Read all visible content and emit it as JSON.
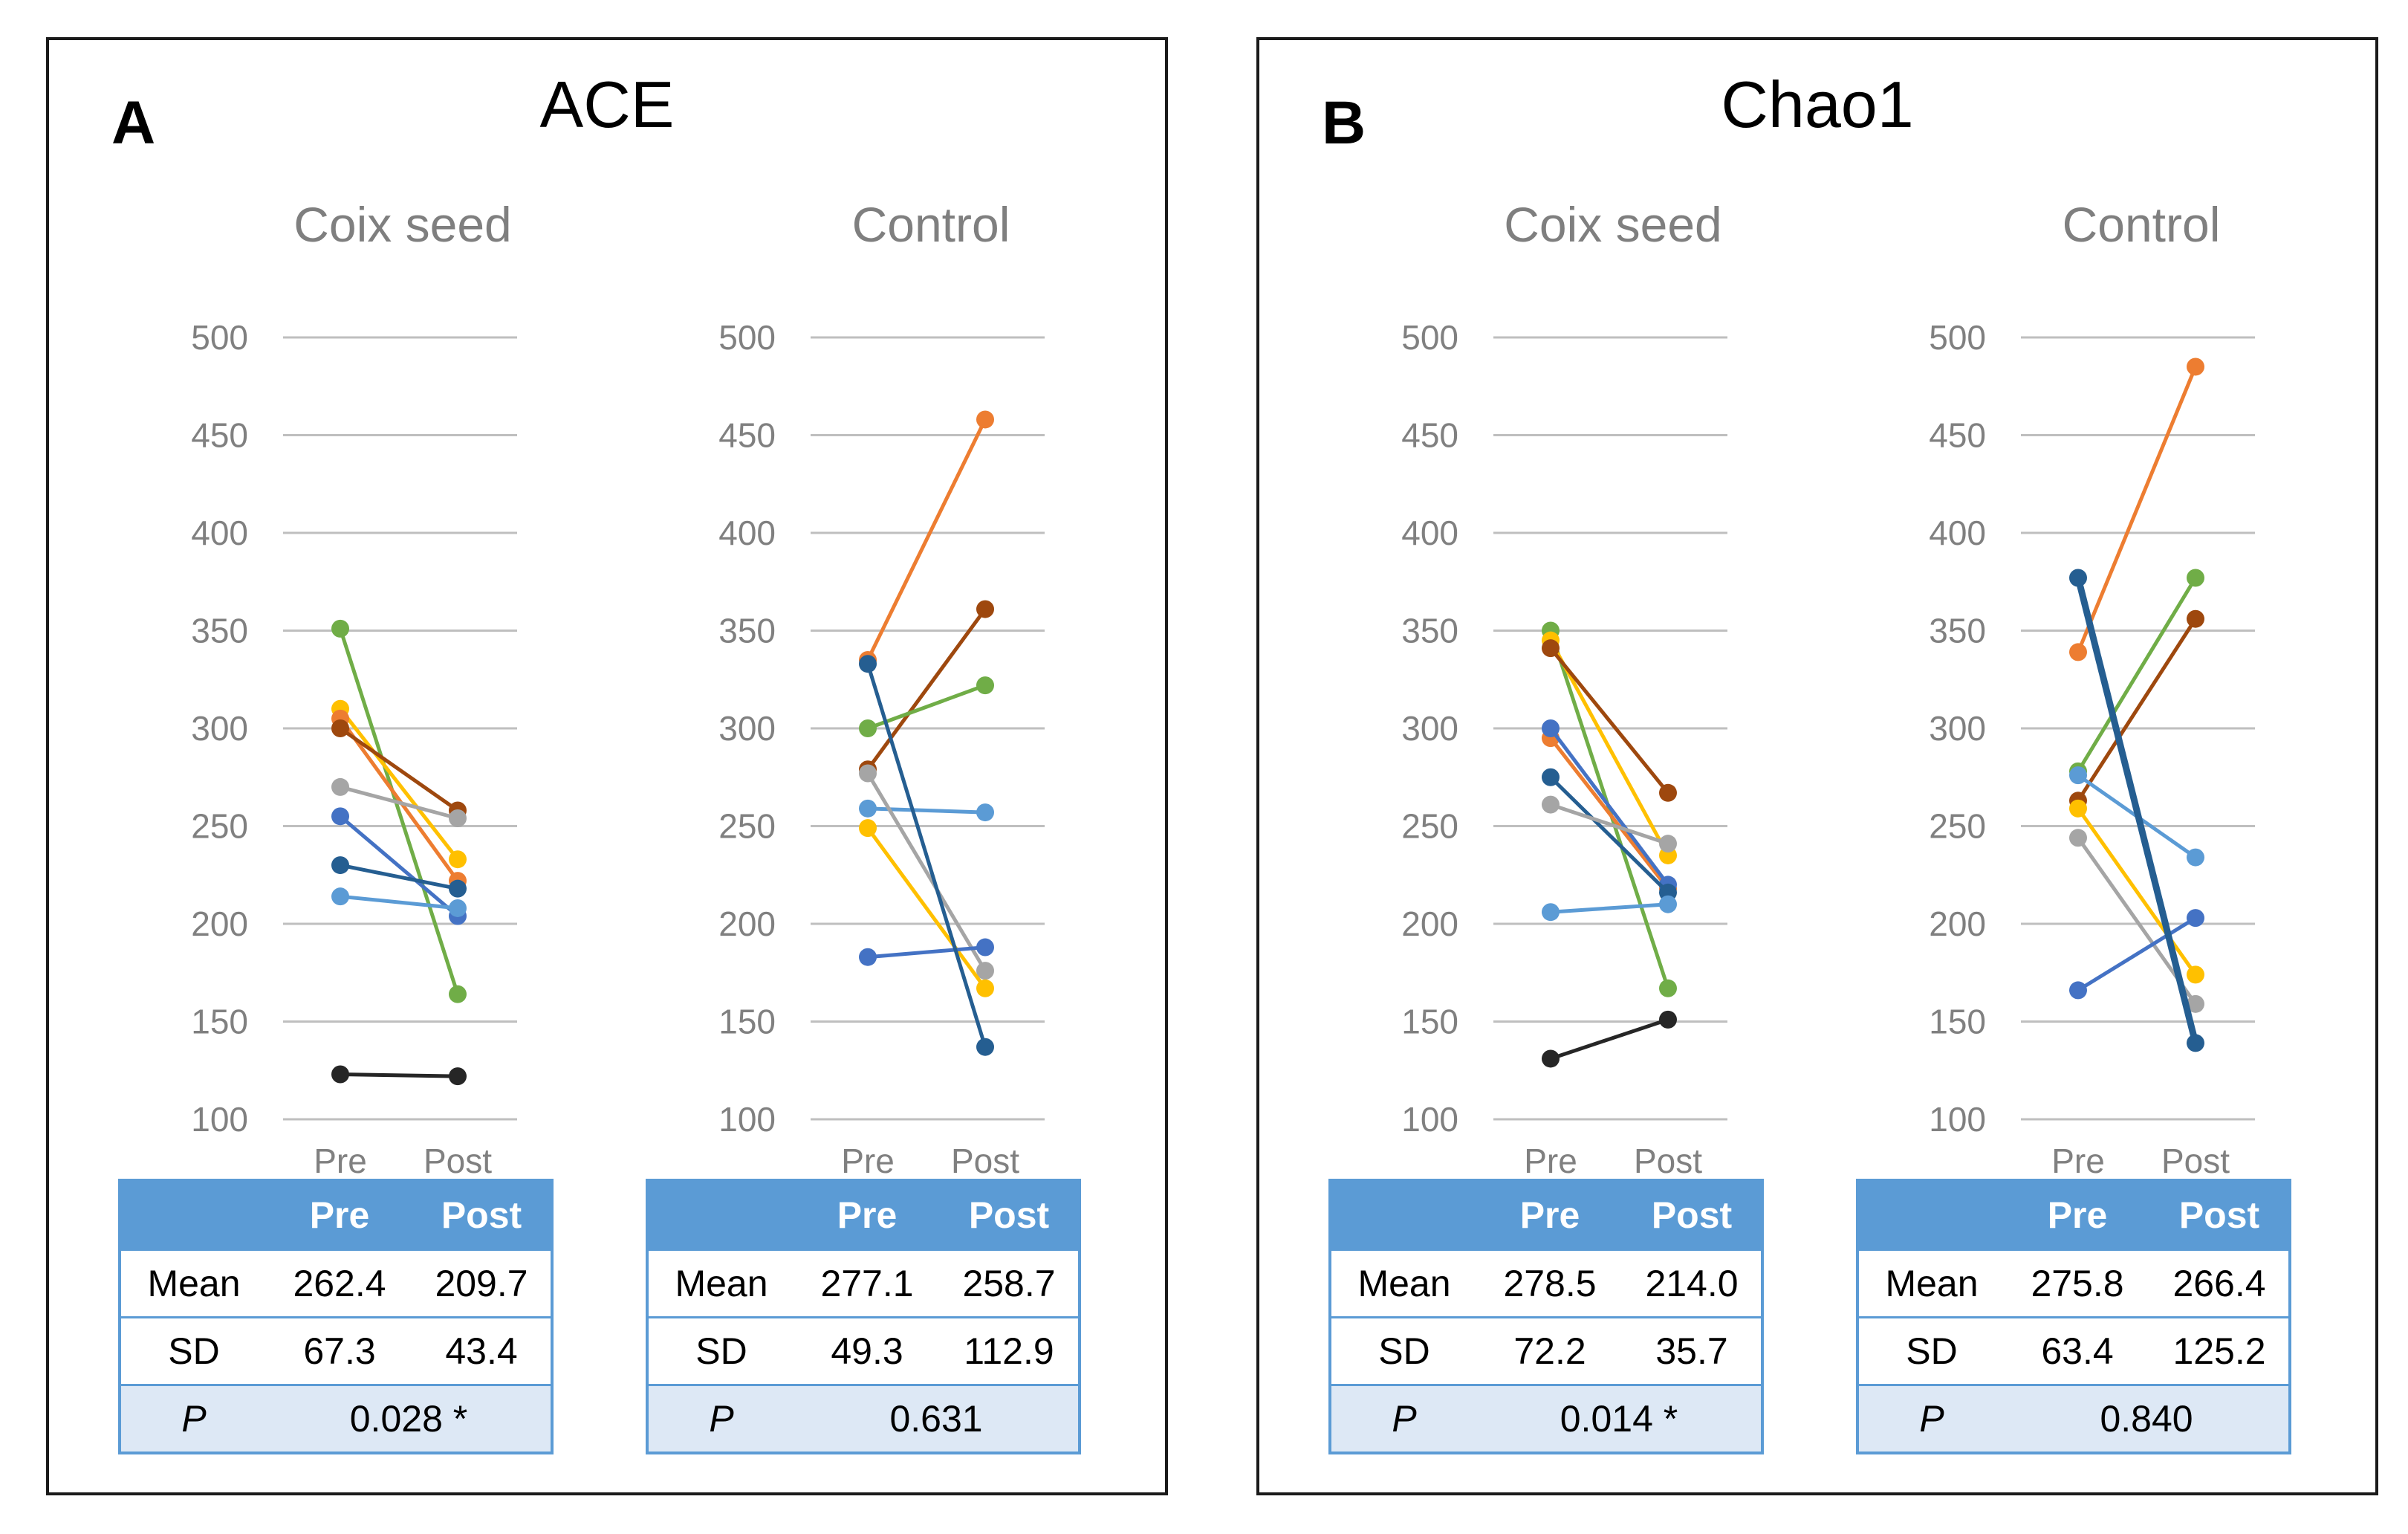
{
  "panels": [
    {
      "letter": "A",
      "title": "ACE",
      "subplots": [
        {
          "title": "Coix seed",
          "table": {
            "header": [
              "",
              "Pre",
              "Post"
            ],
            "mean_label": "Mean",
            "mean": [
              "262.4",
              "209.7"
            ],
            "sd_label": "SD",
            "sd": [
              "67.3",
              "43.4"
            ],
            "p_label": "P",
            "p": "0.028 *"
          }
        },
        {
          "title": "Control",
          "table": {
            "header": [
              "",
              "Pre",
              "Post"
            ],
            "mean_label": "Mean",
            "mean": [
              "277.1",
              "258.7"
            ],
            "sd_label": "SD",
            "sd": [
              "49.3",
              "112.9"
            ],
            "p_label": "P",
            "p": "0.631"
          }
        }
      ]
    },
    {
      "letter": "B",
      "title": "Chao1",
      "subplots": [
        {
          "title": "Coix seed",
          "table": {
            "header": [
              "",
              "Pre",
              "Post"
            ],
            "mean_label": "Mean",
            "mean": [
              "278.5",
              "214.0"
            ],
            "sd_label": "SD",
            "sd": [
              "72.2",
              "35.7"
            ],
            "p_label": "P",
            "p": "0.014 *"
          }
        },
        {
          "title": "Control",
          "table": {
            "header": [
              "",
              "Pre",
              "Post"
            ],
            "mean_label": "Mean",
            "mean": [
              "275.8",
              "266.4"
            ],
            "sd_label": "SD",
            "sd": [
              "63.4",
              "125.2"
            ],
            "p_label": "P",
            "p": "0.840"
          }
        }
      ]
    }
  ],
  "chart_data": [
    {
      "type": "line",
      "panel": "A",
      "title": "Coix seed",
      "x": [
        "Pre",
        "Post"
      ],
      "ylim": [
        100,
        500
      ],
      "yticks": [
        100,
        150,
        200,
        250,
        300,
        350,
        400,
        450,
        500
      ],
      "grid": true,
      "series": [
        {
          "color": "#70ad47",
          "values": [
            351,
            164
          ]
        },
        {
          "color": "#ffc000",
          "values": [
            310,
            233
          ]
        },
        {
          "color": "#ed7d31",
          "values": [
            305,
            222
          ]
        },
        {
          "color": "#9e480e",
          "values": [
            300,
            258
          ]
        },
        {
          "color": "#a5a5a5",
          "values": [
            270,
            254
          ]
        },
        {
          "color": "#4472c4",
          "values": [
            255,
            204
          ]
        },
        {
          "color": "#255e91",
          "values": [
            230,
            218
          ]
        },
        {
          "color": "#5b9bd5",
          "values": [
            214,
            208
          ]
        },
        {
          "color": "#262626",
          "values": [
            123,
            122
          ]
        }
      ]
    },
    {
      "type": "line",
      "panel": "A",
      "title": "Control",
      "x": [
        "Pre",
        "Post"
      ],
      "ylim": [
        100,
        500
      ],
      "yticks": [
        100,
        150,
        200,
        250,
        300,
        350,
        400,
        450,
        500
      ],
      "grid": true,
      "series": [
        {
          "color": "#ed7d31",
          "values": [
            335,
            458
          ]
        },
        {
          "color": "#9e480e",
          "values": [
            279,
            361
          ]
        },
        {
          "color": "#70ad47",
          "values": [
            300,
            322
          ]
        },
        {
          "color": "#5b9bd5",
          "values": [
            259,
            257
          ]
        },
        {
          "color": "#a5a5a5",
          "values": [
            277,
            176
          ]
        },
        {
          "color": "#ffc000",
          "values": [
            249,
            167
          ]
        },
        {
          "color": "#4472c4",
          "values": [
            183,
            188
          ]
        },
        {
          "color": "#255e91",
          "values": [
            333,
            137
          ]
        }
      ]
    },
    {
      "type": "line",
      "panel": "B",
      "title": "Coix seed",
      "x": [
        "Pre",
        "Post"
      ],
      "ylim": [
        100,
        500
      ],
      "yticks": [
        100,
        150,
        200,
        250,
        300,
        350,
        400,
        450,
        500
      ],
      "grid": true,
      "series": [
        {
          "color": "#70ad47",
          "values": [
            350,
            167
          ]
        },
        {
          "color": "#ffc000",
          "values": [
            345,
            235
          ]
        },
        {
          "color": "#9e480e",
          "values": [
            341,
            267
          ]
        },
        {
          "color": "#ed7d31",
          "values": [
            295,
            218
          ]
        },
        {
          "color": "#4472c4",
          "values": [
            300,
            220
          ]
        },
        {
          "color": "#255e91",
          "values": [
            275,
            216
          ]
        },
        {
          "color": "#a5a5a5",
          "values": [
            261,
            241
          ]
        },
        {
          "color": "#5b9bd5",
          "values": [
            206,
            210
          ]
        },
        {
          "color": "#262626",
          "values": [
            131,
            151
          ]
        }
      ]
    },
    {
      "type": "line",
      "panel": "B",
      "title": "Control",
      "x": [
        "Pre",
        "Post"
      ],
      "ylim": [
        100,
        500
      ],
      "yticks": [
        100,
        150,
        200,
        250,
        300,
        350,
        400,
        450,
        500
      ],
      "grid": true,
      "series": [
        {
          "color": "#ed7d31",
          "values": [
            339,
            485
          ]
        },
        {
          "color": "#70ad47",
          "values": [
            278,
            377
          ]
        },
        {
          "color": "#9e480e",
          "values": [
            263,
            356
          ]
        },
        {
          "color": "#5b9bd5",
          "values": [
            276,
            234
          ]
        },
        {
          "color": "#a5a5a5",
          "values": [
            244,
            159
          ]
        },
        {
          "color": "#ffc000",
          "values": [
            259,
            174
          ]
        },
        {
          "color": "#4472c4",
          "values": [
            166,
            203
          ]
        },
        {
          "color": "#255e91",
          "values": [
            377,
            139
          ]
        }
      ]
    }
  ]
}
